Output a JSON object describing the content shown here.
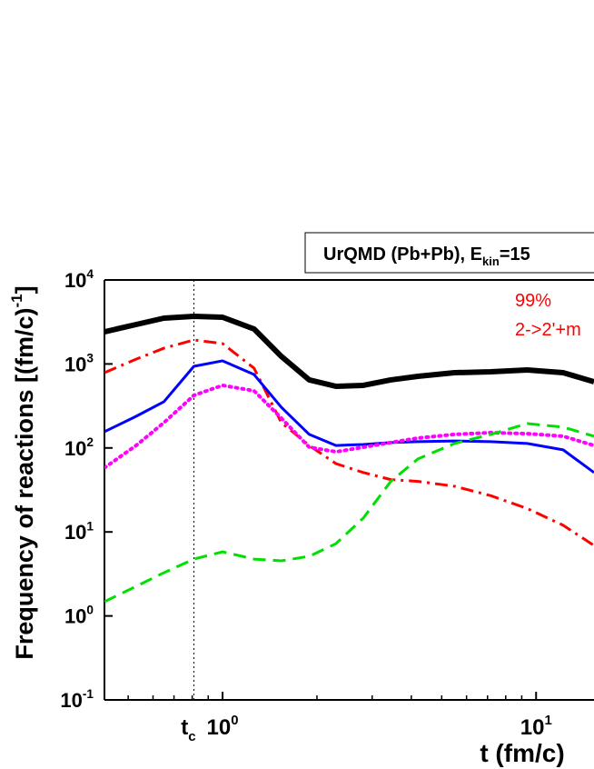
{
  "chart_data": {
    "type": "line",
    "title": {
      "text": "UrQMD (Pb+Pb), E",
      "subscript": "kin",
      "tail": "=15"
    },
    "annotations": [
      {
        "text": "99%",
        "color": "#ff0000"
      },
      {
        "text": "2->2'+m",
        "color": "#ff0000"
      }
    ],
    "ylabel": {
      "text": "Frequency of reactions [(fm/c)",
      "superscript": "-1",
      "tail": "]"
    },
    "xlabel": "t (fm/c)",
    "marker_line": {
      "x": 0.81,
      "text": "t",
      "subscript": "c"
    },
    "xscale": "log",
    "yscale": "log",
    "xlim": [
      0.42,
      15.3
    ],
    "ylim": [
      0.1,
      10000
    ],
    "xticks": [
      {
        "value": 1,
        "label": "10",
        "exponent": "0"
      },
      {
        "value": 10,
        "label": "10",
        "exponent": "1"
      }
    ],
    "xminorticks": [
      0.5,
      0.6,
      0.7,
      0.8,
      0.9,
      2,
      3,
      4,
      5,
      6,
      7,
      8,
      9
    ],
    "yticks": [
      {
        "value": 0.1,
        "label": "10",
        "exponent": "-1"
      },
      {
        "value": 1,
        "label": "10",
        "exponent": "0"
      },
      {
        "value": 10,
        "label": "10",
        "exponent": "1"
      },
      {
        "value": 100,
        "label": "10",
        "exponent": "2"
      },
      {
        "value": 1000,
        "label": "10",
        "exponent": "3"
      },
      {
        "value": 10000,
        "label": "10",
        "exponent": "4"
      }
    ],
    "x": [
      0.42,
      0.53,
      0.65,
      0.81,
      1.0,
      1.26,
      1.54,
      1.89,
      2.3,
      2.81,
      3.44,
      4.2,
      5.49,
      7.17,
      9.37,
      12.2,
      15.3
    ],
    "series": [
      {
        "color": "#000000",
        "style": "solid",
        "linewidth": 6,
        "values": [
          2415,
          2950,
          3510,
          3690,
          3600,
          2610,
          1230,
          646,
          542,
          556,
          646,
          713,
          787,
          807,
          849,
          787,
          614
        ]
      },
      {
        "color": "#ff0000",
        "style": "dashdot",
        "linewidth": 3,
        "values": [
          787,
          1140,
          1540,
          1930,
          1750,
          891,
          200,
          107,
          65,
          51,
          42,
          40,
          35,
          27,
          19,
          12,
          6.9
        ]
      },
      {
        "color": "#0000ff",
        "style": "solid",
        "linewidth": 3,
        "values": [
          156,
          238,
          355,
          937,
          1090,
          748,
          305,
          145,
          107,
          110,
          116,
          119,
          121,
          119,
          113,
          95,
          51
        ]
      },
      {
        "color": "#ff00ff",
        "style": "dot",
        "linewidth": 4,
        "values": [
          58,
          107,
          200,
          423,
          556,
          479,
          226,
          102,
          90,
          102,
          116,
          131,
          145,
          152,
          148,
          138,
          107
        ]
      },
      {
        "color": "#00e000",
        "style": "dash",
        "linewidth": 3,
        "values": [
          1.48,
          2.25,
          3.27,
          4.75,
          5.8,
          4.75,
          4.53,
          5.13,
          7.26,
          14.6,
          40,
          74,
          113,
          145,
          195,
          177,
          138
        ]
      }
    ]
  }
}
